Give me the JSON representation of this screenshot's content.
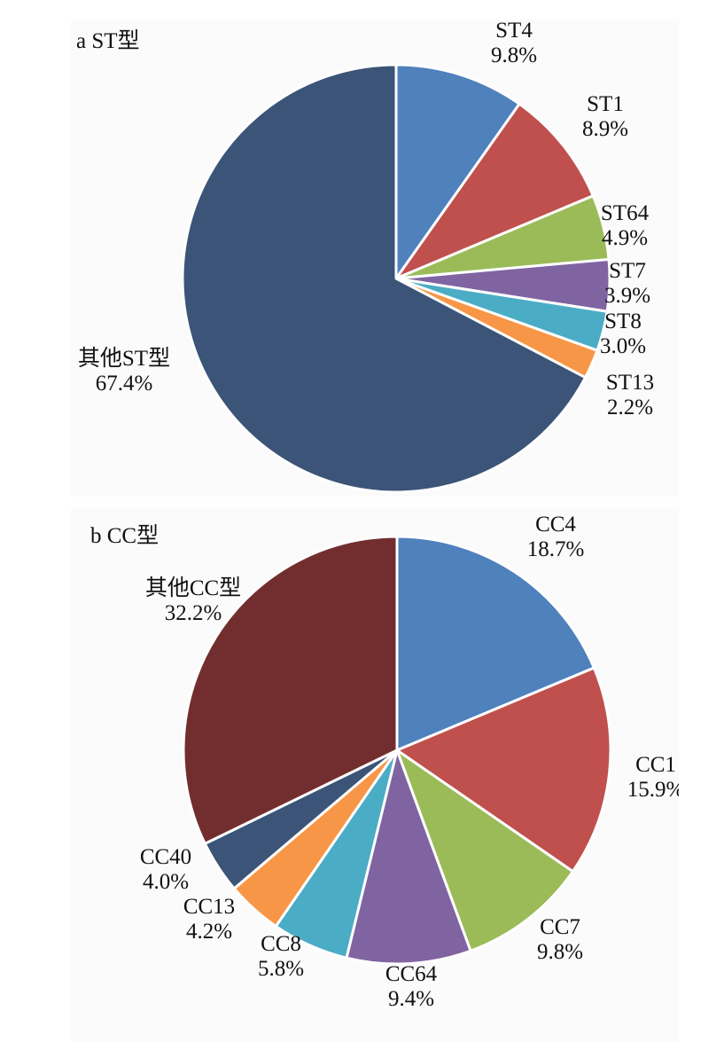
{
  "chart_data": [
    {
      "type": "pie",
      "title": "a ST型",
      "colors": {
        "ST4": "#4f81bd",
        "ST1": "#c0504d",
        "ST64": "#9bbb59",
        "ST7": "#8064a2",
        "ST8": "#4bacc6",
        "ST13": "#f79646",
        "其他ST型": "#3b5478"
      },
      "slices": [
        {
          "label": "ST4",
          "value": 9.8,
          "value_label": "9.8%"
        },
        {
          "label": "ST1",
          "value": 8.9,
          "value_label": "8.9%"
        },
        {
          "label": "ST64",
          "value": 4.9,
          "value_label": "4.9%"
        },
        {
          "label": "ST7",
          "value": 3.9,
          "value_label": "3.9%"
        },
        {
          "label": "ST8",
          "value": 3.0,
          "value_label": "3.0%"
        },
        {
          "label": "ST13",
          "value": 2.2,
          "value_label": "2.2%"
        },
        {
          "label": "其他ST型",
          "value": 67.4,
          "value_label": "67.4%"
        }
      ]
    },
    {
      "type": "pie",
      "title": "b CC型",
      "colors": {
        "CC4": "#4f81bd",
        "CC1": "#c0504d",
        "CC7": "#9bbb59",
        "CC64": "#8064a2",
        "CC8": "#4bacc6",
        "CC13": "#f79646",
        "CC40": "#3b5478",
        "其他CC型": "#722e2e"
      },
      "slices": [
        {
          "label": "CC4",
          "value": 18.7,
          "value_label": "18.7%"
        },
        {
          "label": "CC1",
          "value": 15.9,
          "value_label": "15.9%"
        },
        {
          "label": "CC7",
          "value": 9.8,
          "value_label": "9.8%"
        },
        {
          "label": "CC64",
          "value": 9.4,
          "value_label": "9.4%"
        },
        {
          "label": "CC8",
          "value": 5.8,
          "value_label": "5.8%"
        },
        {
          "label": "CC13",
          "value": 4.2,
          "value_label": "4.2%"
        },
        {
          "label": "CC40",
          "value": 4.0,
          "value_label": "4.0%"
        },
        {
          "label": "其他CC型",
          "value": 32.2,
          "value_label": "32.2%"
        }
      ]
    }
  ]
}
